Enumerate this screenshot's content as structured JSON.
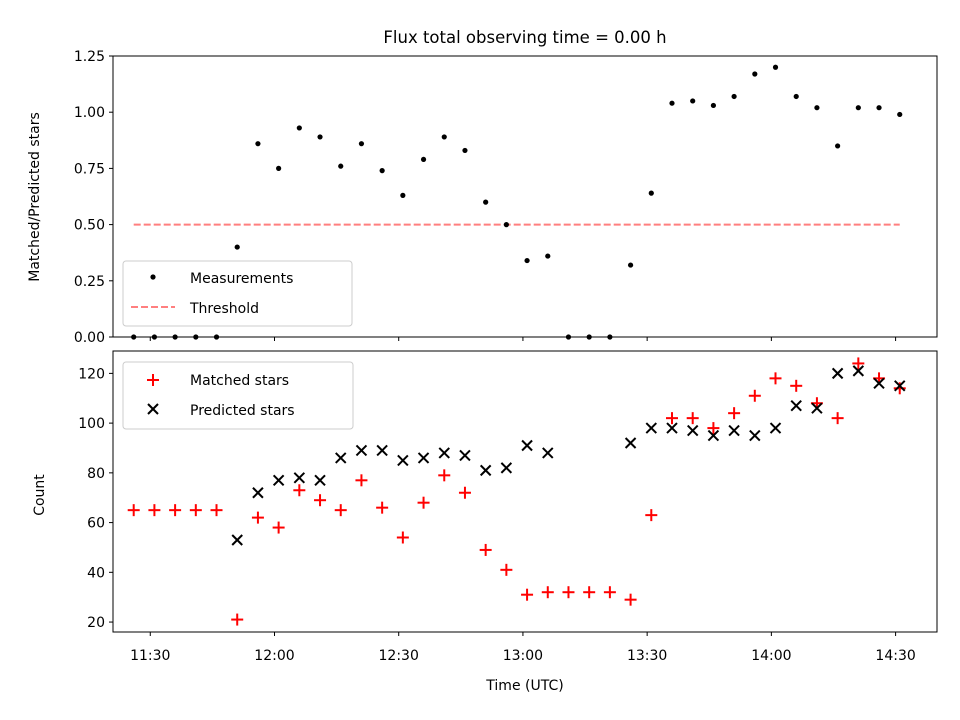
{
  "title": "Flux total observing time = 0.00 h",
  "colors": {
    "measurement": "#000000",
    "threshold": "#ff7f7f",
    "matched": "#ff0000",
    "predicted": "#000000"
  },
  "chart_data": [
    {
      "type": "scatter",
      "title": "Flux total observing time = 0.00 h",
      "xlabel": "",
      "ylabel": "Matched/Predicted stars",
      "xlim": [
        "11:21",
        "14:40"
      ],
      "ylim": [
        0,
        1.25
      ],
      "yticks": [
        0.0,
        0.25,
        0.5,
        0.75,
        1.0,
        1.25
      ],
      "ytick_labels": [
        "0.00",
        "0.25",
        "0.50",
        "0.75",
        "1.00",
        "1.25"
      ],
      "legend_location": "lower-left",
      "series": [
        {
          "name": "Measurements",
          "marker": "dot",
          "x": [
            "11:26",
            "11:31",
            "11:36",
            "11:41",
            "11:46",
            "11:51",
            "11:56",
            "12:01",
            "12:06",
            "12:11",
            "12:16",
            "12:21",
            "12:26",
            "12:31",
            "12:36",
            "12:41",
            "12:46",
            "12:51",
            "12:56",
            "13:01",
            "13:06",
            "13:11",
            "13:16",
            "13:21",
            "13:26",
            "13:31",
            "13:36",
            "13:41",
            "13:46",
            "13:51",
            "13:56",
            "14:01",
            "14:06",
            "14:11",
            "14:16",
            "14:21",
            "14:26",
            "14:31"
          ],
          "y": [
            0.0,
            0.0,
            0.0,
            0.0,
            0.0,
            0.4,
            0.86,
            0.75,
            0.93,
            0.89,
            0.76,
            0.86,
            0.74,
            0.63,
            0.79,
            0.89,
            0.83,
            0.6,
            0.5,
            0.34,
            0.36,
            0.0,
            0.0,
            0.0,
            0.32,
            0.64,
            1.04,
            1.05,
            1.03,
            1.07,
            1.17,
            1.2,
            1.07,
            1.02,
            0.85,
            1.02,
            1.02,
            0.99
          ]
        },
        {
          "name": "Threshold",
          "marker": "dashed-line",
          "x": [
            "11:26",
            "14:31"
          ],
          "y": [
            0.5,
            0.5
          ]
        }
      ]
    },
    {
      "type": "scatter",
      "xlabel": "Time (UTC)",
      "ylabel": "Count",
      "xlim": [
        "11:21",
        "14:40"
      ],
      "ylim": [
        16,
        129
      ],
      "xticks": [
        "11:30",
        "12:00",
        "12:30",
        "13:00",
        "13:30",
        "14:00",
        "14:30"
      ],
      "yticks": [
        20,
        40,
        60,
        80,
        100,
        120
      ],
      "legend_location": "top-left",
      "series": [
        {
          "name": "Matched stars",
          "marker": "plus",
          "x": [
            "11:26",
            "11:31",
            "11:36",
            "11:41",
            "11:46",
            "11:51",
            "11:56",
            "12:01",
            "12:06",
            "12:11",
            "12:16",
            "12:21",
            "12:26",
            "12:31",
            "12:36",
            "12:41",
            "12:46",
            "12:51",
            "12:56",
            "13:01",
            "13:06",
            "13:11",
            "13:16",
            "13:21",
            "13:26",
            "13:31",
            "13:36",
            "13:41",
            "13:46",
            "13:51",
            "13:56",
            "14:01",
            "14:06",
            "14:11",
            "14:16",
            "14:21",
            "14:26",
            "14:31"
          ],
          "y": [
            65,
            65,
            65,
            65,
            65,
            21,
            62,
            58,
            73,
            69,
            65,
            77,
            66,
            54,
            68,
            79,
            72,
            49,
            41,
            31,
            32,
            32,
            32,
            32,
            29,
            63,
            102,
            102,
            98,
            104,
            111,
            118,
            115,
            108,
            102,
            124,
            118,
            114
          ]
        },
        {
          "name": "Predicted stars",
          "marker": "x",
          "x": [
            "11:51",
            "11:56",
            "12:01",
            "12:06",
            "12:11",
            "12:16",
            "12:21",
            "12:26",
            "12:31",
            "12:36",
            "12:41",
            "12:46",
            "12:51",
            "12:56",
            "13:01",
            "13:06",
            "13:26",
            "13:31",
            "13:36",
            "13:41",
            "13:46",
            "13:51",
            "13:56",
            "14:01",
            "14:06",
            "14:11",
            "14:16",
            "14:21",
            "14:26",
            "14:31"
          ],
          "y": [
            53,
            72,
            77,
            78,
            77,
            86,
            89,
            89,
            85,
            86,
            88,
            87,
            81,
            82,
            91,
            88,
            92,
            98,
            98,
            97,
            95,
            97,
            95,
            98,
            107,
            106,
            120,
            121,
            116,
            115
          ]
        }
      ]
    }
  ]
}
